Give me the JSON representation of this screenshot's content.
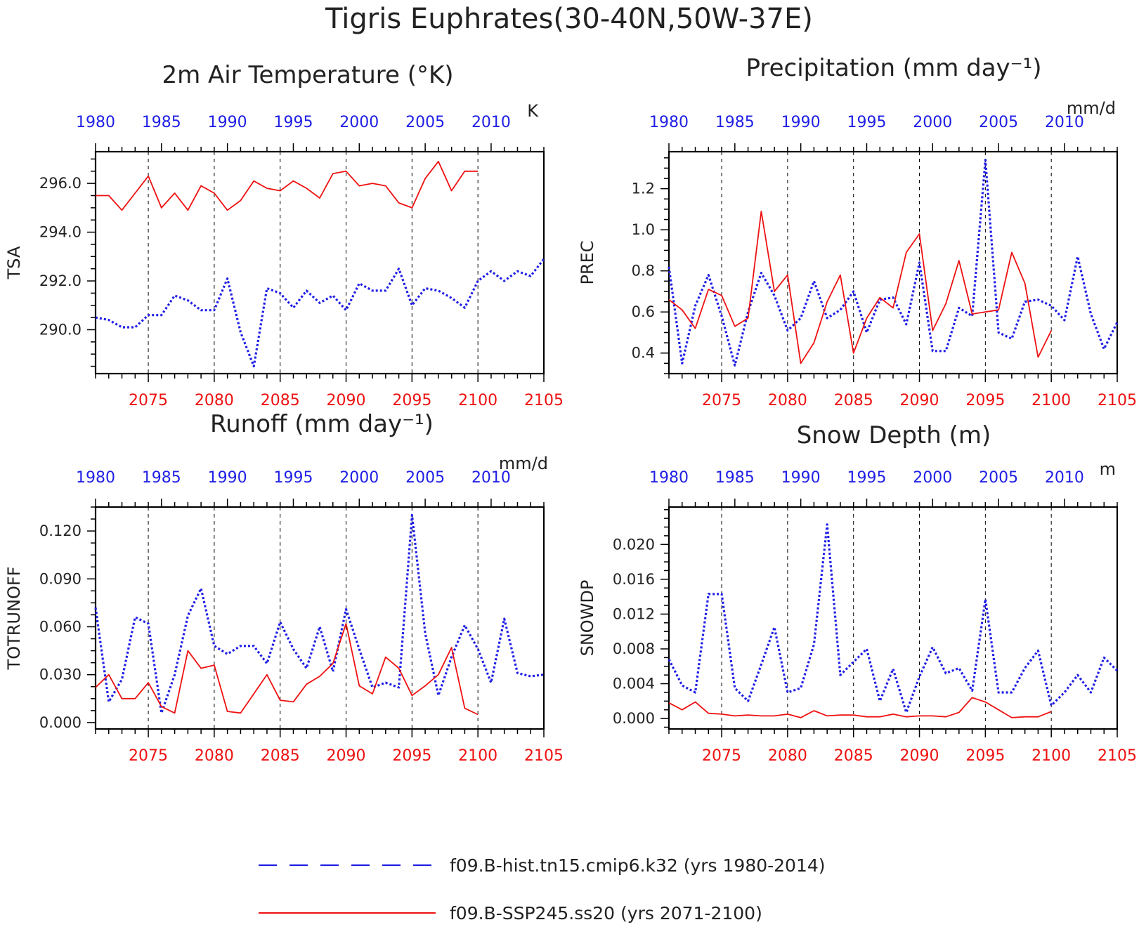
{
  "figure_title": "Tigris Euphrates(30-40N,50W-37E)",
  "colors": {
    "hist": "#1f1fe6",
    "ssp": "#ee1111",
    "axis": "#000000",
    "text": "#222222"
  },
  "legend": [
    {
      "label": "f09.B-hist.tn15.cmip6.k32 (yrs 1980-2014)",
      "series": "hist",
      "style": "dashed"
    },
    {
      "label": "f09.B-SSP245.ss20 (yrs 2071-2100)",
      "series": "ssp",
      "style": "solid"
    }
  ],
  "chart_data": [
    {
      "type": "line",
      "title": "2m Air Temperature (°K)",
      "unit": "K",
      "ylabel": "TSA",
      "ylim": [
        288.2,
        297.3
      ],
      "yticks": [
        290.0,
        292.0,
        294.0,
        296.0
      ],
      "ytick_labels": [
        "290.0",
        "292.0",
        "294.0",
        "296.0"
      ],
      "top_axis": {
        "xlim": [
          1980,
          2014
        ],
        "ticks": [
          1980,
          1985,
          1990,
          1995,
          2000,
          2005,
          2010
        ]
      },
      "bottom_axis": {
        "xlim": [
          2071,
          2105
        ],
        "ticks": [
          2075,
          2080,
          2085,
          2090,
          2095,
          2100,
          2105
        ]
      },
      "grid_x": [
        2075,
        2080,
        2085,
        2090,
        2095,
        2100
      ],
      "series": [
        {
          "name": "f09.B-hist.tn15.cmip6.k32 (yrs 1980-2014)",
          "key": "hist",
          "x": [
            1980,
            1981,
            1982,
            1983,
            1984,
            1985,
            1986,
            1987,
            1988,
            1989,
            1990,
            1991,
            1992,
            1993,
            1994,
            1995,
            1996,
            1997,
            1998,
            1999,
            2000,
            2001,
            2002,
            2003,
            2004,
            2005,
            2006,
            2007,
            2008,
            2009,
            2010,
            2011,
            2012,
            2013,
            2014
          ],
          "values": [
            290.5,
            290.4,
            290.1,
            290.1,
            290.6,
            290.6,
            291.4,
            291.2,
            290.8,
            290.8,
            292.1,
            289.9,
            288.5,
            291.7,
            291.5,
            290.9,
            291.6,
            291.1,
            291.4,
            290.8,
            291.9,
            291.6,
            291.6,
            292.5,
            291.0,
            291.7,
            291.6,
            291.3,
            290.9,
            292.0,
            292.4,
            292.0,
            292.4,
            292.2,
            292.9
          ]
        },
        {
          "name": "f09.B-SSP245.ss20 (yrs 2071-2100)",
          "key": "ssp",
          "x": [
            2071,
            2072,
            2073,
            2074,
            2075,
            2076,
            2077,
            2078,
            2079,
            2080,
            2081,
            2082,
            2083,
            2084,
            2085,
            2086,
            2087,
            2088,
            2089,
            2090,
            2091,
            2092,
            2093,
            2094,
            2095,
            2096,
            2097,
            2098,
            2099,
            2100
          ],
          "values": [
            295.5,
            295.5,
            294.9,
            295.6,
            296.3,
            295.0,
            295.6,
            294.9,
            295.9,
            295.6,
            294.9,
            295.3,
            296.1,
            295.8,
            295.7,
            296.1,
            295.8,
            295.4,
            296.4,
            296.5,
            295.9,
            296.0,
            295.9,
            295.2,
            295.0,
            296.2,
            296.9,
            295.7,
            296.5,
            296.5
          ]
        }
      ]
    },
    {
      "type": "line",
      "title": "Precipitation (mm day⁻¹)",
      "unit": "mm/d",
      "ylabel": "PREC",
      "ylim": [
        0.3,
        1.38
      ],
      "yticks": [
        0.4,
        0.6,
        0.8,
        1.0,
        1.2
      ],
      "ytick_labels": [
        "0.4",
        "0.6",
        "0.8",
        "1.0",
        "1.2"
      ],
      "top_axis": {
        "xlim": [
          1980,
          2014
        ],
        "ticks": [
          1980,
          1985,
          1990,
          1995,
          2000,
          2005,
          2010
        ]
      },
      "bottom_axis": {
        "xlim": [
          2071,
          2105
        ],
        "ticks": [
          2075,
          2080,
          2085,
          2090,
          2095,
          2100,
          2105
        ]
      },
      "grid_x": [
        2075,
        2080,
        2085,
        2090,
        2095,
        2100
      ],
      "series": [
        {
          "name": "f09.B-hist.tn15.cmip6.k32 (yrs 1980-2014)",
          "key": "hist",
          "x": [
            1980,
            1981,
            1982,
            1983,
            1984,
            1985,
            1986,
            1987,
            1988,
            1989,
            1990,
            1991,
            1992,
            1993,
            1994,
            1995,
            1996,
            1997,
            1998,
            1999,
            2000,
            2001,
            2002,
            2003,
            2004,
            2005,
            2006,
            2007,
            2008,
            2009,
            2010,
            2011,
            2012,
            2013,
            2014
          ],
          "values": [
            0.82,
            0.35,
            0.63,
            0.78,
            0.58,
            0.34,
            0.6,
            0.79,
            0.68,
            0.51,
            0.57,
            0.75,
            0.57,
            0.61,
            0.7,
            0.5,
            0.66,
            0.67,
            0.54,
            0.84,
            0.41,
            0.41,
            0.62,
            0.58,
            1.34,
            0.5,
            0.47,
            0.65,
            0.66,
            0.63,
            0.56,
            0.87,
            0.59,
            0.42,
            0.55
          ]
        },
        {
          "name": "f09.B-SSP245.ss20 (yrs 2071-2100)",
          "key": "ssp",
          "x": [
            2071,
            2072,
            2073,
            2074,
            2075,
            2076,
            2077,
            2078,
            2079,
            2080,
            2081,
            2082,
            2083,
            2084,
            2085,
            2086,
            2087,
            2088,
            2089,
            2090,
            2091,
            2092,
            2093,
            2094,
            2095,
            2096,
            2097,
            2098,
            2099,
            2100
          ],
          "values": [
            0.66,
            0.61,
            0.52,
            0.71,
            0.68,
            0.53,
            0.57,
            1.09,
            0.7,
            0.78,
            0.35,
            0.45,
            0.65,
            0.78,
            0.4,
            0.57,
            0.67,
            0.62,
            0.89,
            0.98,
            0.51,
            0.64,
            0.85,
            0.59,
            0.6,
            0.61,
            0.89,
            0.74,
            0.38,
            0.51
          ]
        }
      ]
    },
    {
      "type": "line",
      "title": "Runoff (mm day⁻¹)",
      "unit": "mm/d",
      "ylabel": "TOTRUNOFF",
      "ylim": [
        -0.004,
        0.135
      ],
      "yticks": [
        0.0,
        0.03,
        0.06,
        0.09,
        0.12
      ],
      "ytick_labels": [
        "0.000",
        "0.030",
        "0.060",
        "0.090",
        "0.120"
      ],
      "top_axis": {
        "xlim": [
          1980,
          2014
        ],
        "ticks": [
          1980,
          1985,
          1990,
          1995,
          2000,
          2005,
          2010
        ]
      },
      "bottom_axis": {
        "xlim": [
          2071,
          2105
        ],
        "ticks": [
          2075,
          2080,
          2085,
          2090,
          2095,
          2100,
          2105
        ]
      },
      "grid_x": [
        2075,
        2080,
        2085,
        2090,
        2095,
        2100
      ],
      "series": [
        {
          "name": "f09.B-hist.tn15.cmip6.k32 (yrs 1980-2014)",
          "key": "hist",
          "x": [
            1980,
            1981,
            1982,
            1983,
            1984,
            1985,
            1986,
            1987,
            1988,
            1989,
            1990,
            1991,
            1992,
            1993,
            1994,
            1995,
            1996,
            1997,
            1998,
            1999,
            2000,
            2001,
            2002,
            2003,
            2004,
            2005,
            2006,
            2007,
            2008,
            2009,
            2010,
            2011,
            2012,
            2013,
            2014
          ],
          "values": [
            0.072,
            0.013,
            0.027,
            0.066,
            0.062,
            0.006,
            0.03,
            0.067,
            0.084,
            0.048,
            0.043,
            0.048,
            0.048,
            0.037,
            0.063,
            0.046,
            0.034,
            0.06,
            0.032,
            0.071,
            0.046,
            0.022,
            0.025,
            0.022,
            0.13,
            0.056,
            0.017,
            0.041,
            0.061,
            0.046,
            0.025,
            0.065,
            0.031,
            0.029,
            0.03
          ]
        },
        {
          "name": "f09.B-SSP245.ss20 (yrs 2071-2100)",
          "key": "ssp",
          "x": [
            2071,
            2072,
            2073,
            2074,
            2075,
            2076,
            2077,
            2078,
            2079,
            2080,
            2081,
            2082,
            2083,
            2084,
            2085,
            2086,
            2087,
            2088,
            2089,
            2090,
            2091,
            2092,
            2093,
            2094,
            2095,
            2096,
            2097,
            2098,
            2099,
            2100
          ],
          "values": [
            0.022,
            0.03,
            0.015,
            0.015,
            0.025,
            0.01,
            0.006,
            0.045,
            0.034,
            0.036,
            0.007,
            0.006,
            0.018,
            0.03,
            0.014,
            0.013,
            0.024,
            0.029,
            0.037,
            0.062,
            0.023,
            0.018,
            0.041,
            0.034,
            0.017,
            0.023,
            0.03,
            0.047,
            0.009,
            0.005
          ]
        }
      ]
    },
    {
      "type": "line",
      "title": "Snow Depth (m)",
      "unit": "m",
      "ylabel": "SNOWDP",
      "ylim": [
        -0.0012,
        0.0243
      ],
      "yticks": [
        0.0,
        0.004,
        0.008,
        0.012,
        0.016,
        0.02
      ],
      "ytick_labels": [
        "0.000",
        "0.004",
        "0.008",
        "0.012",
        "0.016",
        "0.020"
      ],
      "top_axis": {
        "xlim": [
          1980,
          2014
        ],
        "ticks": [
          1980,
          1985,
          1990,
          1995,
          2000,
          2005,
          2010
        ]
      },
      "bottom_axis": {
        "xlim": [
          2071,
          2105
        ],
        "ticks": [
          2075,
          2080,
          2085,
          2090,
          2095,
          2100,
          2105
        ]
      },
      "grid_x": [
        2075,
        2080,
        2085,
        2090,
        2095,
        2100
      ],
      "series": [
        {
          "name": "f09.B-hist.tn15.cmip6.k32 (yrs 1980-2014)",
          "key": "hist",
          "x": [
            1980,
            1981,
            1982,
            1983,
            1984,
            1985,
            1986,
            1987,
            1988,
            1989,
            1990,
            1991,
            1992,
            1993,
            1994,
            1995,
            1996,
            1997,
            1998,
            1999,
            2000,
            2001,
            2002,
            2003,
            2004,
            2005,
            2006,
            2007,
            2008,
            2009,
            2010,
            2011,
            2012,
            2013,
            2014
          ],
          "values": [
            0.0068,
            0.0038,
            0.003,
            0.0143,
            0.0143,
            0.0035,
            0.002,
            0.0062,
            0.0105,
            0.003,
            0.0035,
            0.0085,
            0.0223,
            0.005,
            0.0065,
            0.008,
            0.002,
            0.0057,
            0.0007,
            0.0048,
            0.0082,
            0.0052,
            0.0058,
            0.0032,
            0.0137,
            0.003,
            0.003,
            0.0058,
            0.0078,
            0.0015,
            0.003,
            0.005,
            0.003,
            0.007,
            0.0055
          ]
        },
        {
          "name": "f09.B-SSP245.ss20 (yrs 2071-2100)",
          "key": "ssp",
          "x": [
            2071,
            2072,
            2073,
            2074,
            2075,
            2076,
            2077,
            2078,
            2079,
            2080,
            2081,
            2082,
            2083,
            2084,
            2085,
            2086,
            2087,
            2088,
            2089,
            2090,
            2091,
            2092,
            2093,
            2094,
            2095,
            2096,
            2097,
            2098,
            2099,
            2100
          ],
          "values": [
            0.0018,
            0.001,
            0.0019,
            0.0006,
            0.0005,
            0.0003,
            0.0004,
            0.0003,
            0.0003,
            0.0005,
            0.0001,
            0.0009,
            0.0003,
            0.0004,
            0.0004,
            0.0002,
            0.0002,
            0.0005,
            0.0002,
            0.0003,
            0.0003,
            0.0002,
            0.0007,
            0.0024,
            0.0019,
            0.001,
            0.0001,
            0.0002,
            0.0002,
            0.0008
          ]
        }
      ]
    }
  ]
}
